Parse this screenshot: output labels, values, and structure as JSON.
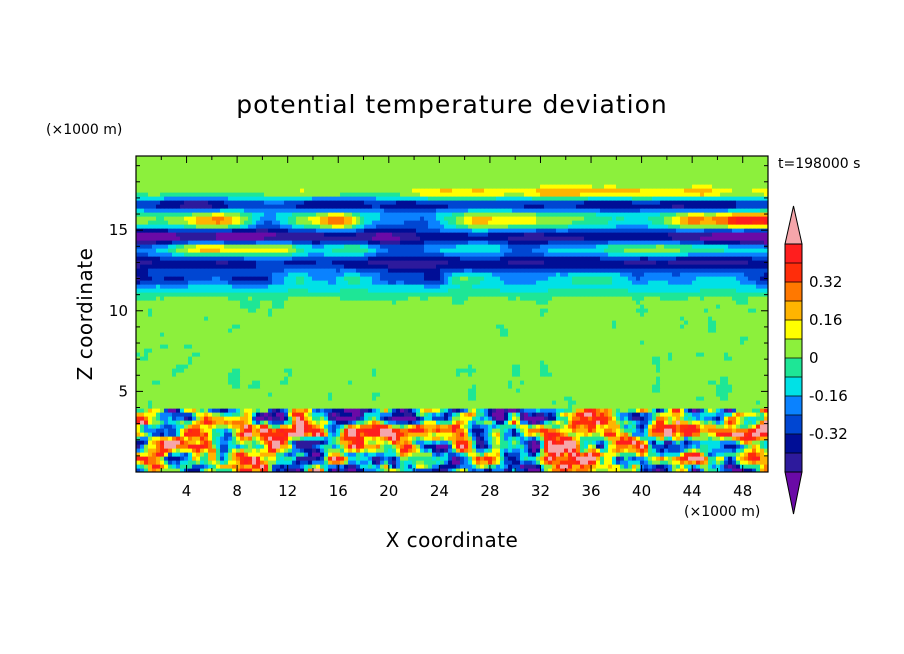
{
  "chart_data": {
    "type": "heatmap",
    "title": "potential temperature deviation",
    "xlabel": "X coordinate",
    "ylabel": "Z coordinate",
    "x_units": "(×1000 m)",
    "z_units": "(×1000 m)",
    "time_label": "t=198000 s",
    "xlim": [
      0,
      50
    ],
    "ylim": [
      0,
      19.6
    ],
    "x_ticks": [
      4,
      8,
      12,
      16,
      20,
      24,
      28,
      32,
      36,
      40,
      44,
      48
    ],
    "y_ticks": [
      5,
      10,
      15
    ],
    "colorbar": {
      "levels": [
        -0.48,
        -0.4,
        -0.32,
        -0.24,
        -0.16,
        -0.08,
        0,
        0.08,
        0.16,
        0.24,
        0.32,
        0.4,
        0.48
      ],
      "colors": [
        "#6a0aa6",
        "#2d1a9c",
        "#000e96",
        "#0046d2",
        "#0a82ff",
        "#00e1e6",
        "#1ee696",
        "#8cf03c",
        "#ffff00",
        "#ffb400",
        "#ff7800",
        "#ff2d0a",
        "#ff1e1e",
        "#f5a5aa"
      ],
      "labels": [
        "0.32",
        "0.16",
        "0",
        "-0.16",
        "-0.32"
      ],
      "label_values": [
        0.32,
        0.16,
        0,
        -0.16,
        -0.32
      ],
      "extend": "both"
    },
    "features": [
      {
        "region": "upper stratosphere z 16-18.5",
        "anomaly": "mixed warm/cold layers"
      },
      {
        "region": "z 12-16.5",
        "anomaly": "strong alternating warm (pink) and cold (purple) bands"
      },
      {
        "region": "z 10.5-12.5",
        "anomaly": "cool cyan band"
      },
      {
        "region": "z 4-10",
        "anomaly": "near zero, weak positive speckle"
      },
      {
        "region": "z 0-4",
        "anomaly": "turbulent boundary layer, strong mixed anomalies"
      }
    ]
  },
  "colors": {
    "background": "#ffffff",
    "axis": "#000000"
  }
}
